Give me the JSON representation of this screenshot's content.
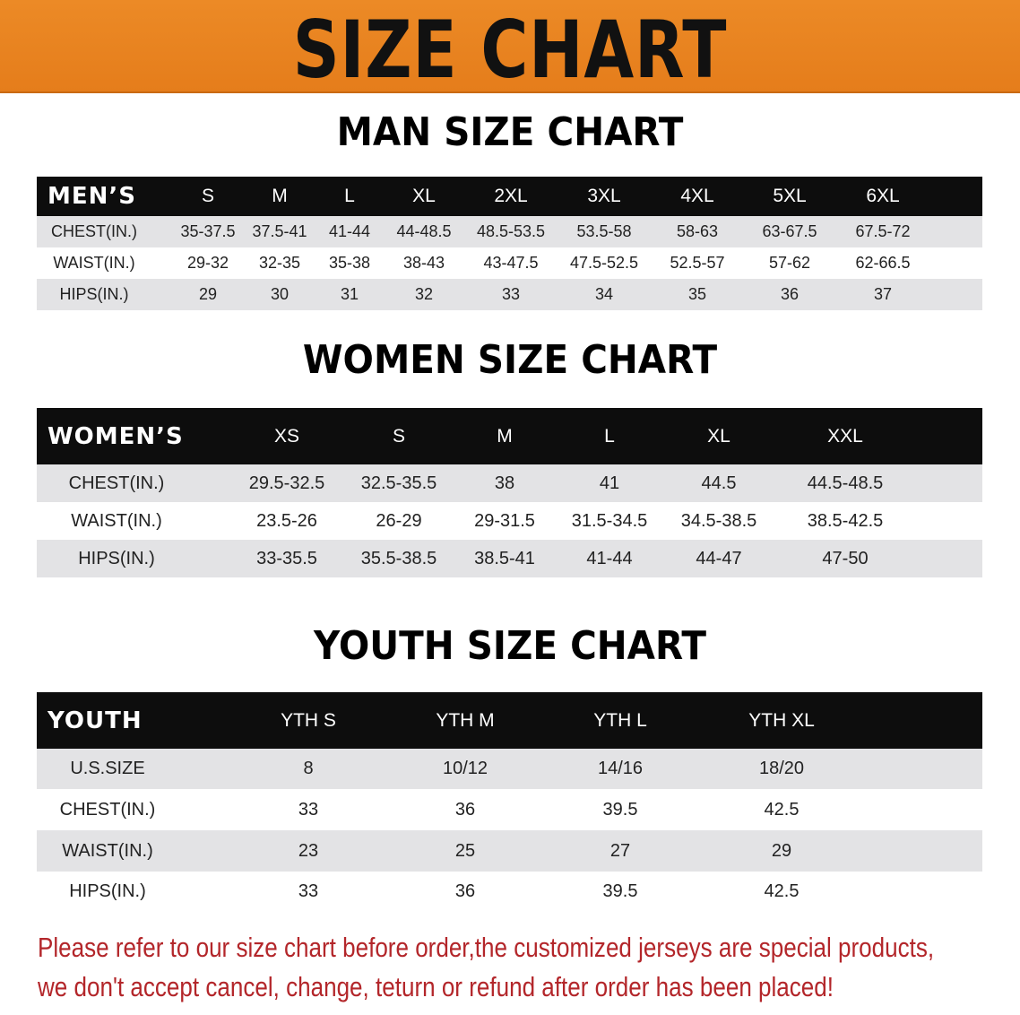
{
  "banner_title": "SIZE CHART",
  "men": {
    "title": "MAN SIZE CHART",
    "header": [
      "MEN’S",
      "S",
      "M",
      "L",
      "XL",
      "2XL",
      "3XL",
      "4XL",
      "5XL",
      "6XL"
    ],
    "rows": [
      [
        "CHEST(IN.)",
        "35-37.5",
        "37.5-41",
        "41-44",
        "44-48.5",
        "48.5-53.5",
        "53.5-58",
        "58-63",
        "63-67.5",
        "67.5-72"
      ],
      [
        "WAIST(IN.)",
        "29-32",
        "32-35",
        "35-38",
        "38-43",
        "43-47.5",
        "47.5-52.5",
        "52.5-57",
        "57-62",
        "62-66.5"
      ],
      [
        "HIPS(IN.)",
        "29",
        "30",
        "31",
        "32",
        "33",
        "34",
        "35",
        "36",
        "37"
      ]
    ]
  },
  "women": {
    "title": "WOMEN SIZE CHART",
    "header": [
      "WOMEN’S",
      "XS",
      "S",
      "M",
      "L",
      "XL",
      "XXL"
    ],
    "rows": [
      [
        "CHEST(IN.)",
        "29.5-32.5",
        "32.5-35.5",
        "38",
        "41",
        "44.5",
        "44.5-48.5"
      ],
      [
        "WAIST(IN.)",
        "23.5-26",
        "26-29",
        "29-31.5",
        "31.5-34.5",
        "34.5-38.5",
        "38.5-42.5"
      ],
      [
        "HIPS(IN.)",
        "33-35.5",
        "35.5-38.5",
        "38.5-41",
        "41-44",
        "44-47",
        "47-50"
      ]
    ]
  },
  "youth": {
    "title": "YOUTH SIZE CHART",
    "header": [
      "YOUTH",
      "YTH S",
      "YTH M",
      "YTH L",
      "YTH XL"
    ],
    "rows": [
      [
        "U.S.SIZE",
        "8",
        "10/12",
        "14/16",
        "18/20"
      ],
      [
        "CHEST(IN.)",
        "33",
        "36",
        "39.5",
        "42.5"
      ],
      [
        "WAIST(IN.)",
        "23",
        "25",
        "27",
        "29"
      ],
      [
        "HIPS(IN.)",
        "33",
        "36",
        "39.5",
        "42.5"
      ]
    ]
  },
  "notice": {
    "line1": "Please refer to our size chart before order,the customized jerseys are special products,",
    "line2": "we don't accept cancel, change, teturn or refund after order has been placed!"
  },
  "colors": {
    "banner": "#e8821f",
    "header_row": "#0d0d0d",
    "stripe": "#e3e3e5",
    "notice": "#b3262a"
  }
}
